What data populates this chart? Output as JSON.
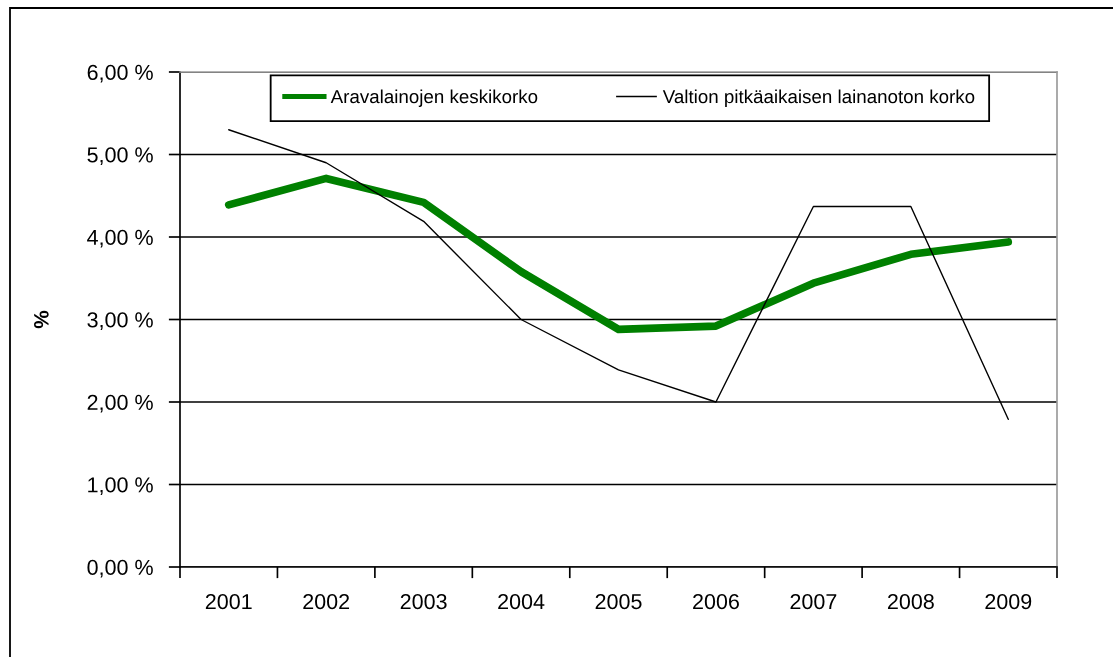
{
  "chart_data": {
    "type": "line",
    "ylabel": "%",
    "categories": [
      "2001",
      "2002",
      "2003",
      "2004",
      "2005",
      "2006",
      "2007",
      "2008",
      "2009"
    ],
    "series": [
      {
        "name": "Aravalainojen keskikorko",
        "color": "#008000",
        "values": [
          4.39,
          4.71,
          4.42,
          3.58,
          2.88,
          2.92,
          3.44,
          3.79,
          3.94
        ]
      },
      {
        "name": "Valtion pitkäaikaisen lainanoton korko",
        "color": "#000000",
        "values": [
          5.3,
          4.9,
          4.19,
          3.0,
          2.39,
          2.0,
          4.37,
          4.37,
          1.79
        ]
      }
    ],
    "ylim": [
      0,
      6
    ],
    "yticks": [
      {
        "value": 0,
        "label": "0,00 %"
      },
      {
        "value": 1,
        "label": "1,00 %"
      },
      {
        "value": 2,
        "label": "2,00 %"
      },
      {
        "value": 3,
        "label": "3,00 %"
      },
      {
        "value": 4,
        "label": "4,00 %"
      },
      {
        "value": 5,
        "label": "5,00 %"
      },
      {
        "value": 6,
        "label": "6,00 %"
      }
    ],
    "grid": "y",
    "legend": "top",
    "marker": "none",
    "line_style": "solid"
  }
}
